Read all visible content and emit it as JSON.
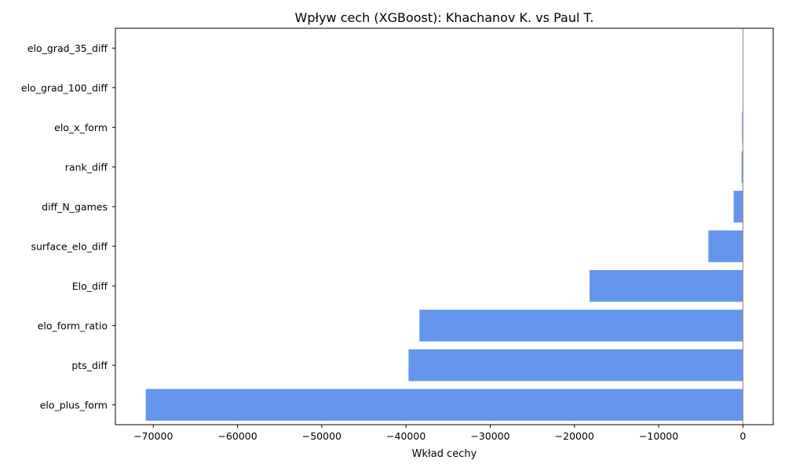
{
  "chart_data": {
    "type": "bar",
    "orientation": "horizontal",
    "title": "Wpływ cech (XGBoost): Khachanov K. vs Paul T.",
    "xlabel": "Wkład cechy",
    "ylabel": "",
    "categories": [
      "elo_grad_35_diff",
      "elo_grad_100_diff",
      "elo_x_form",
      "rank_diff",
      "diff_N_games",
      "surface_elo_diff",
      "Elo_diff",
      "elo_form_ratio",
      "pts_diff",
      "elo_plus_form"
    ],
    "values": [
      0,
      0,
      -100,
      -150,
      -1100,
      -4100,
      -18200,
      -38400,
      -39700,
      -70900
    ],
    "xlim": [
      -74500,
      3600
    ],
    "xticks": [
      -70000,
      -60000,
      -50000,
      -40000,
      -30000,
      -20000,
      -10000,
      0
    ],
    "xtick_labels": [
      "−70000",
      "−60000",
      "−50000",
      "−40000",
      "−30000",
      "−20000",
      "−10000",
      "0"
    ],
    "zero_line": true,
    "grid": false,
    "legend": "none",
    "colors": {
      "bar": "#6495ed",
      "zero_line": "#808080",
      "axis": "#000000"
    }
  }
}
